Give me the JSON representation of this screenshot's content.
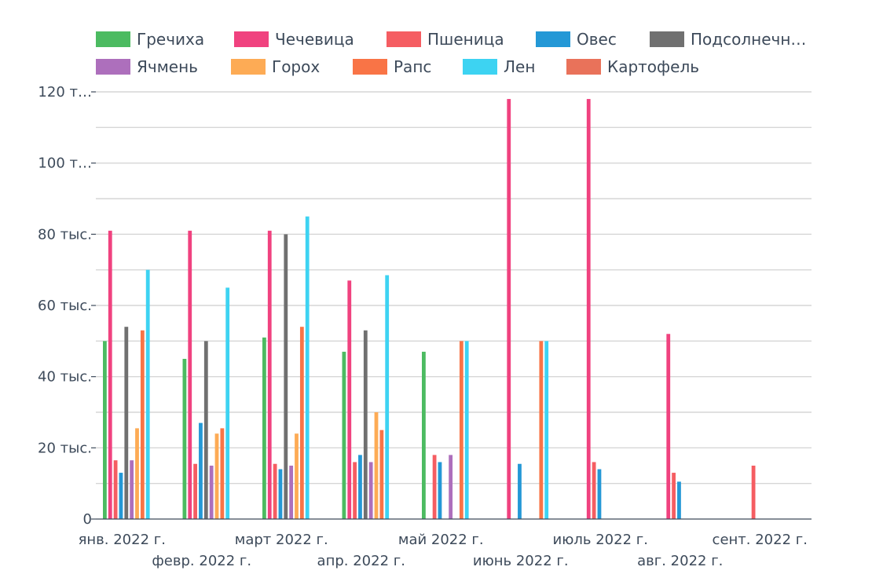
{
  "chart_data": {
    "type": "bar",
    "categories": [
      "янв. 2022 г.",
      "февр. 2022 г.",
      "март 2022 г.",
      "апр. 2022 г.",
      "май 2022 г.",
      "июнь 2022 г.",
      "июль 2022 г.",
      "авг. 2022 г.",
      "сент. 2022 г."
    ],
    "series": [
      {
        "name": "Гречиха",
        "color": "#4cbb61",
        "values": [
          50000,
          45000,
          51000,
          47000,
          47000,
          null,
          null,
          null,
          null
        ]
      },
      {
        "name": "Чечевица",
        "color": "#f0427f",
        "values": [
          81000,
          81000,
          81000,
          67000,
          null,
          118000,
          118000,
          52000,
          null
        ]
      },
      {
        "name": "Пшеница",
        "color": "#f55d62",
        "values": [
          16500,
          15500,
          15500,
          16000,
          18000,
          null,
          16000,
          13000,
          15000
        ]
      },
      {
        "name": "Овес",
        "color": "#2498d6",
        "values": [
          13000,
          27000,
          14000,
          18000,
          16000,
          15500,
          14000,
          10500,
          null
        ]
      },
      {
        "name": "Подсолнечник",
        "color": "#707070",
        "values": [
          54000,
          50000,
          80000,
          53000,
          null,
          null,
          null,
          null,
          null
        ]
      },
      {
        "name": "Ячмень",
        "color": "#ad6fbc",
        "values": [
          16500,
          15000,
          15000,
          16000,
          18000,
          null,
          null,
          null,
          null
        ]
      },
      {
        "name": "Горох",
        "color": "#fdab55",
        "values": [
          25500,
          24000,
          24000,
          30000,
          null,
          null,
          null,
          null,
          null
        ]
      },
      {
        "name": "Рапс",
        "color": "#f97446",
        "values": [
          53000,
          25500,
          54000,
          25000,
          50000,
          50000,
          null,
          null,
          null
        ]
      },
      {
        "name": "Лен",
        "color": "#3dd3f2",
        "values": [
          70000,
          65000,
          85000,
          68500,
          50000,
          50000,
          null,
          null,
          null
        ]
      },
      {
        "name": "Картофель",
        "color": "#e9725a",
        "values": [
          null,
          null,
          null,
          null,
          null,
          null,
          null,
          null,
          null
        ]
      }
    ],
    "legend_labels": [
      "Гречиха",
      "Чечевица",
      "Пшеница",
      "Овес",
      "Подсолнечн…",
      "Ячмень",
      "Горох",
      "Рапс",
      "Лен",
      "Картофель"
    ],
    "y_tick_values": [
      0,
      20000,
      40000,
      60000,
      80000,
      100000,
      120000
    ],
    "y_tick_labels": [
      "0",
      "20 тыс.",
      "40 тыс.",
      "60 тыс.",
      "80 тыс.",
      "100 т…",
      "120 т…"
    ],
    "ylim": [
      0,
      120000
    ],
    "minor_gridlines": true,
    "legend_position": "top",
    "title": "",
    "xlabel": "",
    "ylabel": ""
  }
}
